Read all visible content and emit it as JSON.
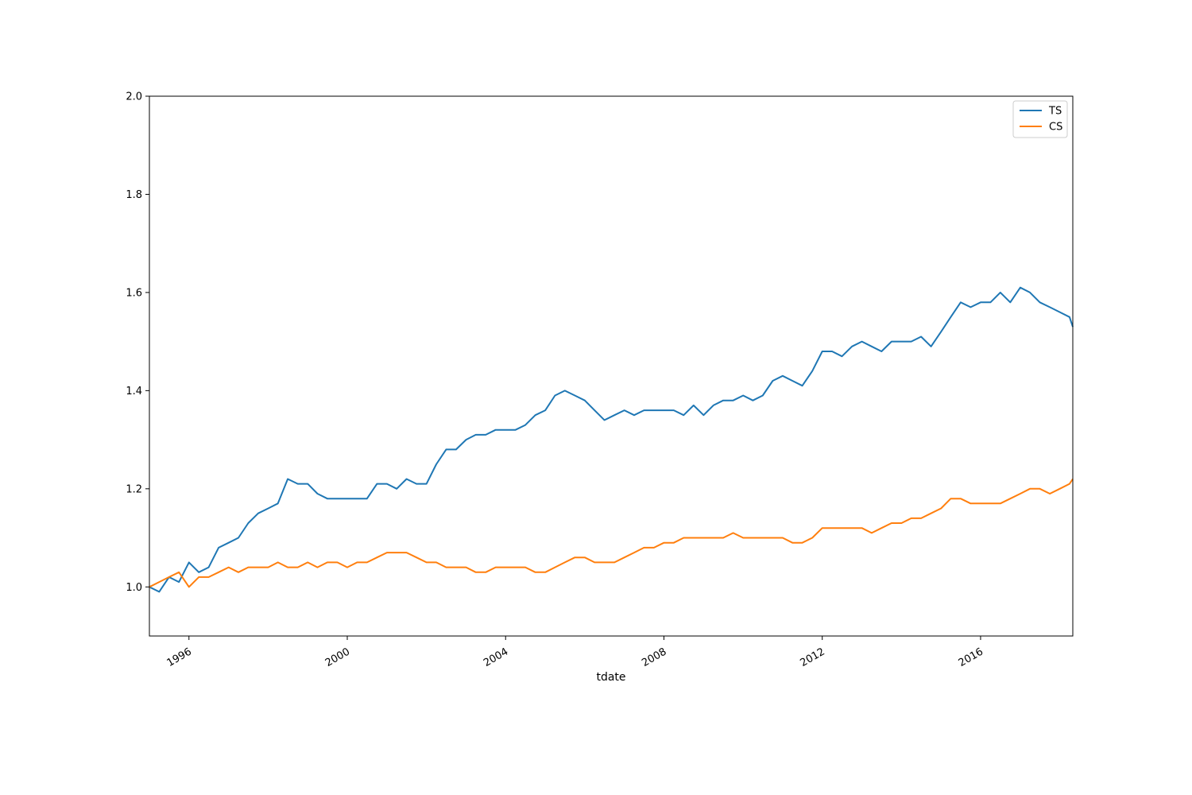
{
  "chart_data": {
    "type": "line",
    "xlabel": "tdate",
    "ylabel": "",
    "xlim": [
      "1995-01-01",
      "2018-05-01"
    ],
    "ylim": [
      0.9,
      2.0
    ],
    "x_ticks": [
      "1996",
      "2000",
      "2004",
      "2008",
      "2012",
      "2016"
    ],
    "y_ticks": [
      "1.0",
      "1.2",
      "1.4",
      "1.6",
      "1.8",
      "2.0"
    ],
    "legend_position": "top-right",
    "grid": false,
    "series": [
      {
        "name": "TS",
        "color": "#1f77b4",
        "x": [
          "1995-01-01",
          "1995-04-01",
          "1995-07-01",
          "1995-10-01",
          "1996-01-01",
          "1996-04-01",
          "1996-07-01",
          "1996-10-01",
          "1997-01-01",
          "1997-04-01",
          "1997-07-01",
          "1997-10-01",
          "1998-01-01",
          "1998-04-01",
          "1998-07-01",
          "1998-10-01",
          "1999-01-01",
          "1999-04-01",
          "1999-07-01",
          "1999-10-01",
          "2000-01-01",
          "2000-04-01",
          "2000-07-01",
          "2000-10-01",
          "2001-01-01",
          "2001-04-01",
          "2001-07-01",
          "2001-10-01",
          "2002-01-01",
          "2002-04-01",
          "2002-07-01",
          "2002-10-01",
          "2003-01-01",
          "2003-04-01",
          "2003-07-01",
          "2003-10-01",
          "2004-01-01",
          "2004-04-01",
          "2004-07-01",
          "2004-10-01",
          "2005-01-01",
          "2005-04-01",
          "2005-07-01",
          "2005-10-01",
          "2006-01-01",
          "2006-04-01",
          "2006-07-01",
          "2006-10-01",
          "2007-01-01",
          "2007-04-01",
          "2007-07-01",
          "2007-10-01",
          "2008-01-01",
          "2008-04-01",
          "2008-07-01",
          "2008-10-01",
          "2009-01-01",
          "2009-04-01",
          "2009-07-01",
          "2009-10-01",
          "2010-01-01",
          "2010-04-01",
          "2010-07-01",
          "2010-10-01",
          "2011-01-01",
          "2011-04-01",
          "2011-07-01",
          "2011-10-01",
          "2012-01-01",
          "2012-04-01",
          "2012-07-01",
          "2012-10-01",
          "2013-01-01",
          "2013-04-01",
          "2013-07-01",
          "2013-10-01",
          "2014-01-01",
          "2014-04-01",
          "2014-07-01",
          "2014-10-01",
          "2015-01-01",
          "2015-04-01",
          "2015-07-01",
          "2015-10-01",
          "2016-01-01",
          "2016-04-01",
          "2016-07-01",
          "2016-10-01",
          "2017-01-01",
          "2017-04-01",
          "2017-07-01",
          "2017-10-01",
          "2018-01-01",
          "2018-04-01",
          "2018-05-01"
        ],
        "values": [
          1.0,
          0.99,
          1.02,
          1.01,
          1.05,
          1.03,
          1.04,
          1.08,
          1.09,
          1.1,
          1.13,
          1.15,
          1.16,
          1.17,
          1.22,
          1.21,
          1.21,
          1.19,
          1.18,
          1.18,
          1.18,
          1.18,
          1.18,
          1.21,
          1.21,
          1.2,
          1.22,
          1.21,
          1.21,
          1.25,
          1.28,
          1.28,
          1.3,
          1.31,
          1.31,
          1.32,
          1.32,
          1.32,
          1.33,
          1.35,
          1.36,
          1.39,
          1.4,
          1.39,
          1.38,
          1.36,
          1.34,
          1.35,
          1.36,
          1.35,
          1.36,
          1.36,
          1.36,
          1.36,
          1.35,
          1.37,
          1.35,
          1.37,
          1.38,
          1.38,
          1.39,
          1.38,
          1.39,
          1.42,
          1.43,
          1.42,
          1.41,
          1.44,
          1.48,
          1.48,
          1.47,
          1.49,
          1.5,
          1.49,
          1.48,
          1.5,
          1.5,
          1.5,
          1.51,
          1.49,
          1.52,
          1.55,
          1.58,
          1.57,
          1.58,
          1.58,
          1.6,
          1.58,
          1.61,
          1.6,
          1.58,
          1.57,
          1.56,
          1.55,
          1.53
        ]
      },
      {
        "name": "CS",
        "color": "#ff7f0e",
        "x": [
          "1995-01-01",
          "1995-04-01",
          "1995-07-01",
          "1995-10-01",
          "1996-01-01",
          "1996-04-01",
          "1996-07-01",
          "1996-10-01",
          "1997-01-01",
          "1997-04-01",
          "1997-07-01",
          "1997-10-01",
          "1998-01-01",
          "1998-04-01",
          "1998-07-01",
          "1998-10-01",
          "1999-01-01",
          "1999-04-01",
          "1999-07-01",
          "1999-10-01",
          "2000-01-01",
          "2000-04-01",
          "2000-07-01",
          "2000-10-01",
          "2001-01-01",
          "2001-04-01",
          "2001-07-01",
          "2001-10-01",
          "2002-01-01",
          "2002-04-01",
          "2002-07-01",
          "2002-10-01",
          "2003-01-01",
          "2003-04-01",
          "2003-07-01",
          "2003-10-01",
          "2004-01-01",
          "2004-04-01",
          "2004-07-01",
          "2004-10-01",
          "2005-01-01",
          "2005-04-01",
          "2005-07-01",
          "2005-10-01",
          "2006-01-01",
          "2006-04-01",
          "2006-07-01",
          "2006-10-01",
          "2007-01-01",
          "2007-04-01",
          "2007-07-01",
          "2007-10-01",
          "2008-01-01",
          "2008-04-01",
          "2008-07-01",
          "2008-10-01",
          "2009-01-01",
          "2009-04-01",
          "2009-07-01",
          "2009-10-01",
          "2010-01-01",
          "2010-04-01",
          "2010-07-01",
          "2010-10-01",
          "2011-01-01",
          "2011-04-01",
          "2011-07-01",
          "2011-10-01",
          "2012-01-01",
          "2012-04-01",
          "2012-07-01",
          "2012-10-01",
          "2013-01-01",
          "2013-04-01",
          "2013-07-01",
          "2013-10-01",
          "2014-01-01",
          "2014-04-01",
          "2014-07-01",
          "2014-10-01",
          "2015-01-01",
          "2015-04-01",
          "2015-07-01",
          "2015-10-01",
          "2016-01-01",
          "2016-04-01",
          "2016-07-01",
          "2016-10-01",
          "2017-01-01",
          "2017-04-01",
          "2017-07-01",
          "2017-10-01",
          "2018-01-01",
          "2018-04-01",
          "2018-05-01"
        ],
        "values": [
          1.0,
          1.01,
          1.02,
          1.03,
          1.0,
          1.02,
          1.02,
          1.03,
          1.04,
          1.03,
          1.04,
          1.04,
          1.04,
          1.05,
          1.04,
          1.04,
          1.05,
          1.04,
          1.05,
          1.05,
          1.04,
          1.05,
          1.05,
          1.06,
          1.07,
          1.07,
          1.07,
          1.06,
          1.05,
          1.05,
          1.04,
          1.04,
          1.04,
          1.03,
          1.03,
          1.04,
          1.04,
          1.04,
          1.04,
          1.03,
          1.03,
          1.04,
          1.05,
          1.06,
          1.06,
          1.05,
          1.05,
          1.05,
          1.06,
          1.07,
          1.08,
          1.08,
          1.09,
          1.09,
          1.1,
          1.1,
          1.1,
          1.1,
          1.1,
          1.11,
          1.1,
          1.1,
          1.1,
          1.1,
          1.1,
          1.09,
          1.09,
          1.1,
          1.12,
          1.12,
          1.12,
          1.12,
          1.12,
          1.11,
          1.12,
          1.13,
          1.13,
          1.14,
          1.14,
          1.15,
          1.16,
          1.18,
          1.18,
          1.17,
          1.17,
          1.17,
          1.17,
          1.18,
          1.19,
          1.2,
          1.2,
          1.19,
          1.2,
          1.21,
          1.22
        ]
      }
    ]
  }
}
